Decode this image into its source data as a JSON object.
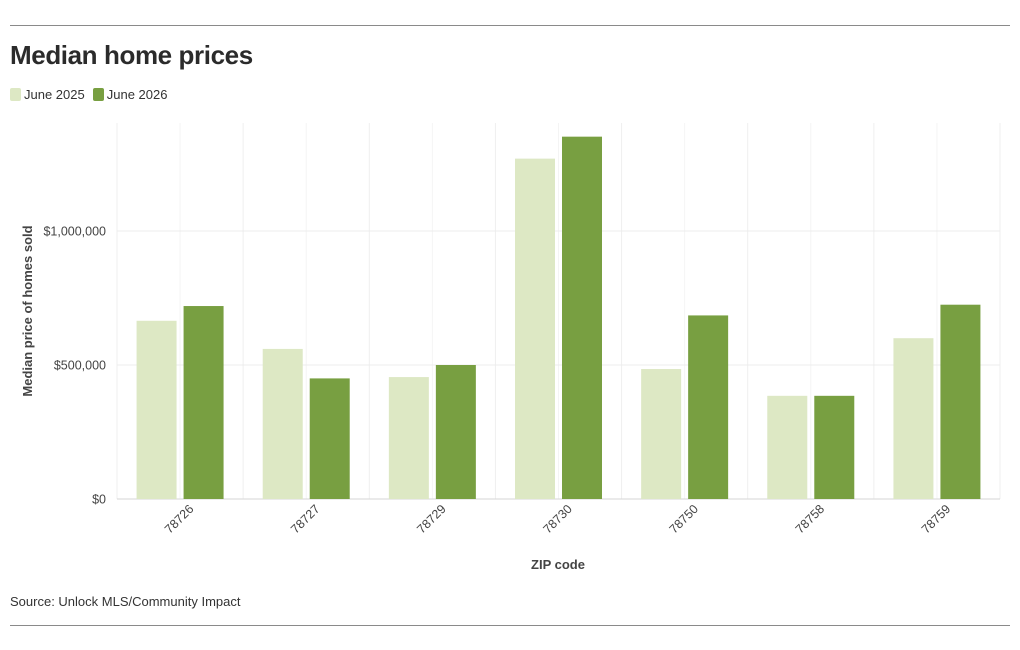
{
  "header": {
    "title": "Median home prices"
  },
  "legend": {
    "items": [
      {
        "label": "June 2025",
        "color": "#dde8c4"
      },
      {
        "label": "June 2026",
        "color": "#789f41"
      }
    ]
  },
  "footer": {
    "source": "Source: Unlock MLS/Community Impact"
  },
  "chart_data": {
    "type": "bar",
    "title": "Median home prices",
    "xlabel": "ZIP code",
    "ylabel": "Median price of homes sold",
    "categories": [
      "78726",
      "78727",
      "78729",
      "78730",
      "78750",
      "78758",
      "78759"
    ],
    "series": [
      {
        "name": "June 2025",
        "color": "#dde8c4",
        "values": [
          665000,
          560000,
          455000,
          1270000,
          485000,
          385000,
          600000
        ]
      },
      {
        "name": "June 2026",
        "color": "#789f41",
        "values": [
          720000,
          450000,
          500000,
          1352000,
          685000,
          385000,
          725000
        ]
      }
    ],
    "yticks": [
      {
        "value": 0,
        "label": "$0"
      },
      {
        "value": 500000,
        "label": "$500,000"
      },
      {
        "value": 1000000,
        "label": "$1,000,000"
      }
    ],
    "ylim": [
      0,
      1400000
    ],
    "grid": true,
    "legend_position": "top-left"
  }
}
